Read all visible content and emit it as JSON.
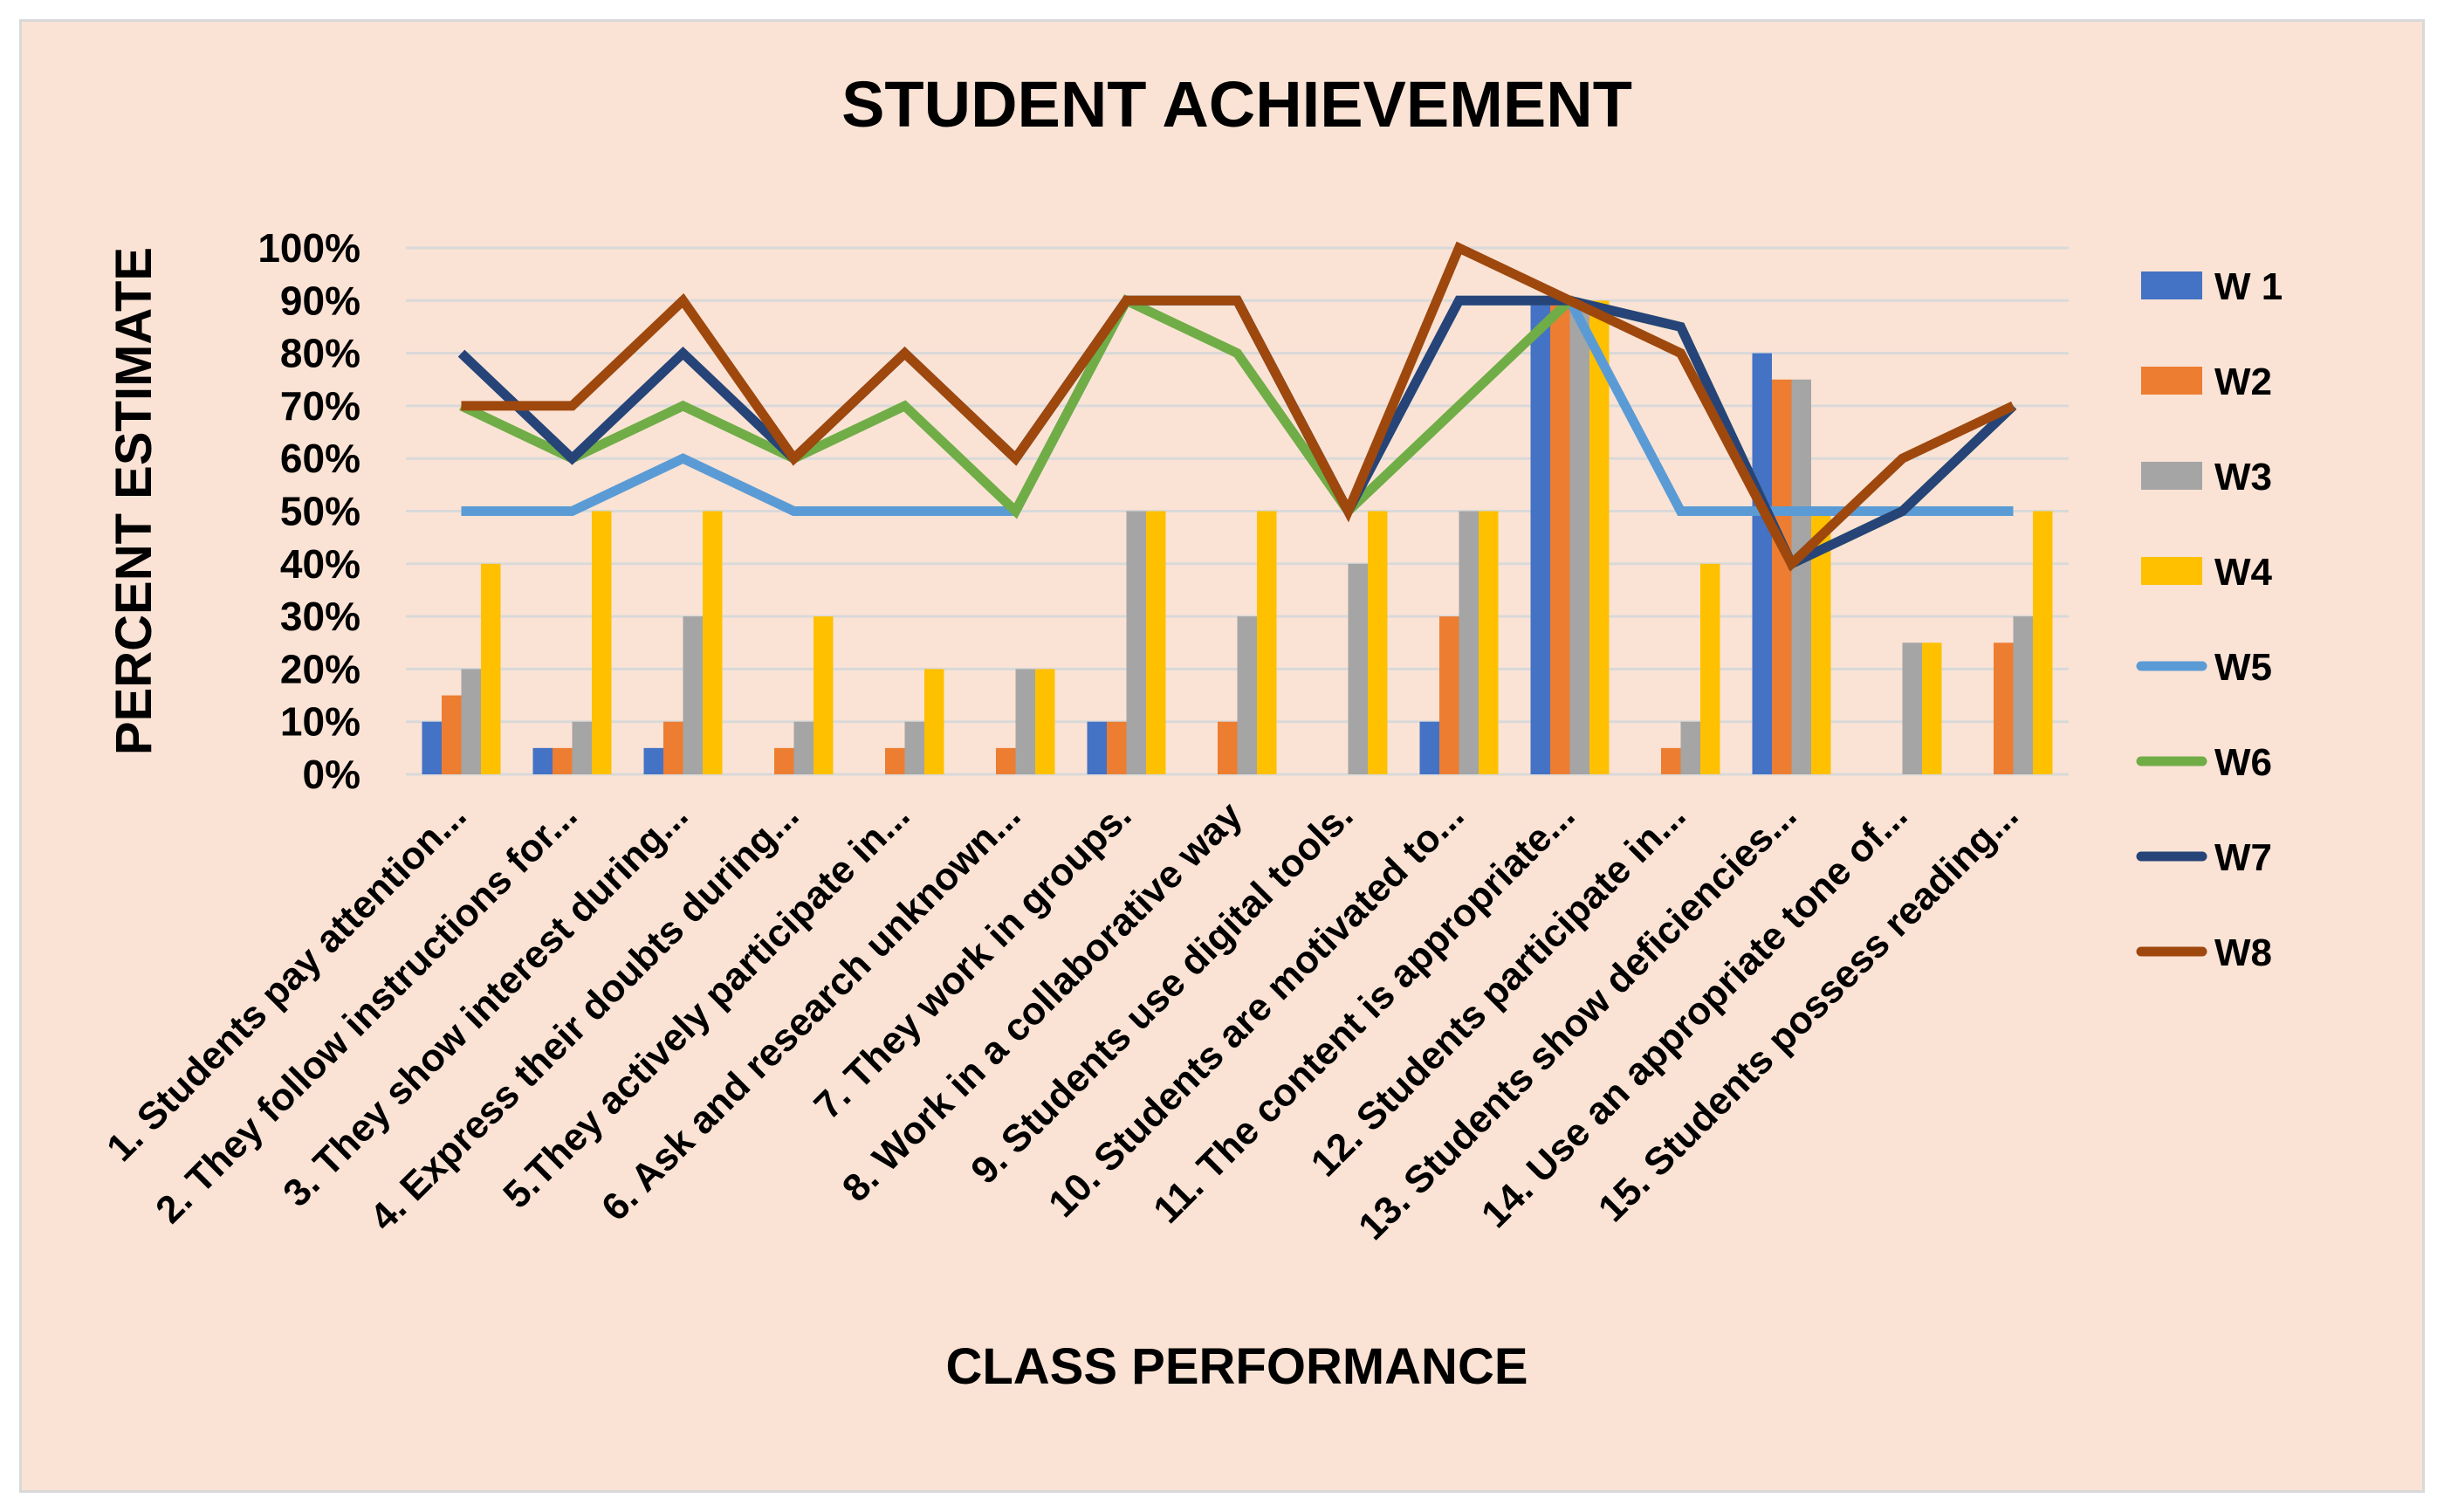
{
  "chart_data": {
    "type": "bar+line",
    "title": "STUDENT ACHIEVEMENT",
    "xlabel": "CLASS PERFORMANCE",
    "ylabel": "PERCENT ESTIMATE",
    "ylim": [
      0,
      100
    ],
    "yticks": [
      "0%",
      "10%",
      "20%",
      "30%",
      "40%",
      "50%",
      "60%",
      "70%",
      "80%",
      "90%",
      "100%"
    ],
    "grid": true,
    "legend_position": "right",
    "categories": [
      "1. Students pay attention...",
      "2. They follow instructions for...",
      "3. They show interest during...",
      "4. Express their doubts during...",
      "5.They actively participate in...",
      "6.  Ask and research unknown...",
      "7. They work in groups.",
      "8.  Work in a collaborative way",
      "9. Students use digital tools.",
      "10. Students are motivated to...",
      "11. The content is appropriate...",
      "12. Students participate in...",
      "13. Students show deficiencies...",
      "14.  Use an appropriate tone of...",
      "15. Students possess reading..."
    ],
    "bar_series": [
      {
        "name": "W 1",
        "color": "#4472c4",
        "values": [
          10,
          5,
          5,
          0,
          0,
          0,
          10,
          0,
          0,
          10,
          90,
          0,
          80,
          0,
          0
        ]
      },
      {
        "name": "W2",
        "color": "#ed7d31",
        "values": [
          15,
          5,
          10,
          5,
          5,
          5,
          10,
          10,
          0,
          30,
          90,
          5,
          75,
          0,
          25
        ]
      },
      {
        "name": "W3",
        "color": "#a5a5a5",
        "values": [
          20,
          10,
          30,
          10,
          10,
          20,
          50,
          30,
          40,
          50,
          90,
          10,
          75,
          25,
          30
        ]
      },
      {
        "name": "W4",
        "color": "#ffc000",
        "values": [
          40,
          50,
          50,
          30,
          20,
          20,
          50,
          50,
          50,
          50,
          90,
          40,
          50,
          25,
          50
        ]
      }
    ],
    "line_series": [
      {
        "name": "W5",
        "color": "#5b9bd5",
        "values": [
          50,
          50,
          60,
          50,
          50,
          50,
          90,
          90,
          50,
          90,
          90,
          50,
          50,
          50,
          50
        ]
      },
      {
        "name": "W6",
        "color": "#70ad47",
        "values": [
          70,
          60,
          70,
          60,
          70,
          50,
          90,
          80,
          50,
          70,
          90,
          85,
          40,
          50,
          70
        ]
      },
      {
        "name": "W7",
        "color": "#264478",
        "values": [
          80,
          60,
          80,
          60,
          80,
          60,
          90,
          90,
          50,
          90,
          90,
          85,
          40,
          50,
          70
        ]
      },
      {
        "name": "W8",
        "color": "#9e480e",
        "values": [
          70,
          70,
          90,
          60,
          80,
          60,
          90,
          90,
          50,
          100,
          90,
          80,
          40,
          60,
          70
        ]
      }
    ]
  }
}
